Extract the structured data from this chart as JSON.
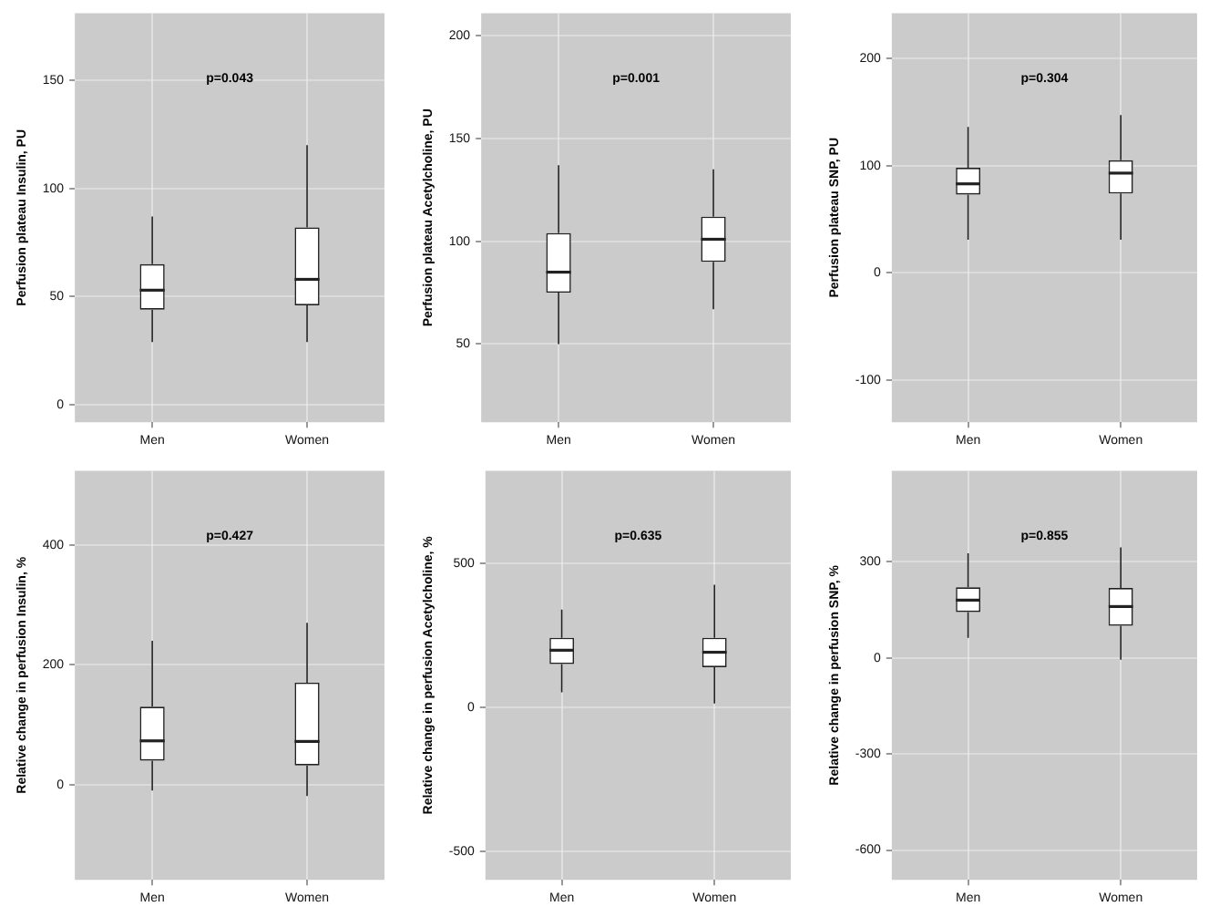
{
  "chart_data": [
    {
      "type": "box",
      "categories": [
        "Men",
        "Women"
      ],
      "ylabel": "Perfusion plateau Insulin, PU",
      "annotations": [
        "p=0.043"
      ],
      "grid": true,
      "ylim": [
        -8,
        181
      ],
      "yticks": [
        0,
        50,
        100,
        150
      ],
      "boxes": [
        {
          "low": 29,
          "q1": 44,
          "median": 53,
          "q3": 65,
          "high": 87
        },
        {
          "low": 29,
          "q1": 46,
          "median": 58,
          "q3": 82,
          "high": 120
        }
      ]
    },
    {
      "type": "box",
      "categories": [
        "Men",
        "Women"
      ],
      "ylabel": "Perfusion plateau Acetylcholine, PU",
      "annotations": [
        "p=0.001"
      ],
      "grid": true,
      "ylim": [
        12,
        211
      ],
      "yticks": [
        50,
        100,
        150,
        200
      ],
      "boxes": [
        {
          "low": 50,
          "q1": 75,
          "median": 85,
          "q3": 104,
          "high": 137
        },
        {
          "low": 67,
          "q1": 90,
          "median": 101,
          "q3": 112,
          "high": 135
        }
      ]
    },
    {
      "type": "box",
      "categories": [
        "Men",
        "Women"
      ],
      "ylabel": "Perfusion plateau SNP, PU",
      "annotations": [
        "p=0.304"
      ],
      "grid": true,
      "ylim": [
        -139,
        242
      ],
      "yticks": [
        -100,
        0,
        100,
        200
      ],
      "boxes": [
        {
          "low": 31,
          "q1": 73,
          "median": 83,
          "q3": 98,
          "high": 136
        },
        {
          "low": 31,
          "q1": 74,
          "median": 93,
          "q3": 105,
          "high": 147
        }
      ]
    },
    {
      "type": "box",
      "categories": [
        "Men",
        "Women"
      ],
      "ylabel": "Relative change in perfusion Insulin, %",
      "annotations": [
        "p=0.427"
      ],
      "grid": true,
      "ylim": [
        -159,
        524
      ],
      "yticks": [
        0,
        200,
        400
      ],
      "boxes": [
        {
          "low": -10,
          "q1": 40,
          "median": 73,
          "q3": 130,
          "high": 240
        },
        {
          "low": -19,
          "q1": 32,
          "median": 72,
          "q3": 170,
          "high": 270
        }
      ]
    },
    {
      "type": "box",
      "categories": [
        "Men",
        "Women"
      ],
      "ylabel": "Relative change in perfusion Acetylcholine, %",
      "annotations": [
        "p=0.635"
      ],
      "grid": true,
      "ylim": [
        -600,
        822
      ],
      "yticks": [
        -500,
        0,
        500
      ],
      "boxes": [
        {
          "low": 52,
          "q1": 150,
          "median": 198,
          "q3": 241,
          "high": 339
        },
        {
          "low": 13,
          "q1": 139,
          "median": 191,
          "q3": 241,
          "high": 426
        }
      ]
    },
    {
      "type": "box",
      "categories": [
        "Men",
        "Women"
      ],
      "ylabel": "Relative change in perfusion SNP, %",
      "annotations": [
        "p=0.855"
      ],
      "grid": true,
      "ylim": [
        -693,
        584
      ],
      "yticks": [
        -600,
        -300,
        0,
        300
      ],
      "boxes": [
        {
          "low": 62,
          "q1": 143,
          "median": 180,
          "q3": 220,
          "high": 326
        },
        {
          "low": -6,
          "q1": 100,
          "median": 160,
          "q3": 218,
          "high": 345
        }
      ]
    }
  ]
}
